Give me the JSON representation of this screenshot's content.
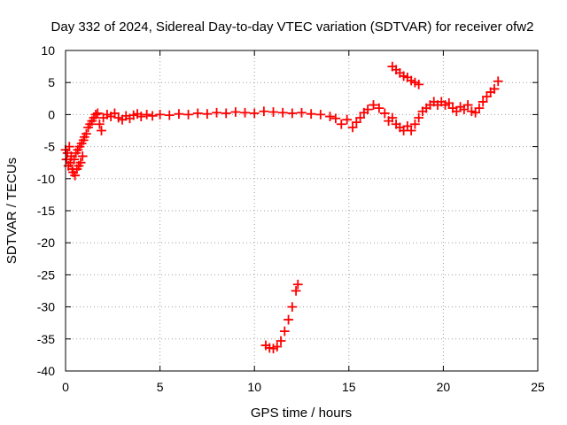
{
  "chart_data": {
    "type": "scatter",
    "title": "Day 332 of 2024, Sidereal Day-to-day VTEC variation (SDTVAR) for receiver ofw2",
    "xlabel": "GPS time / hours",
    "ylabel": "SDTVAR / TECUs",
    "xlim": [
      0,
      25
    ],
    "ylim": [
      -40,
      10
    ],
    "xticks": [
      0,
      5,
      10,
      15,
      20,
      25
    ],
    "yticks": [
      -40,
      -35,
      -30,
      -25,
      -20,
      -15,
      -10,
      -5,
      0,
      5,
      10
    ],
    "xtick_labels": [
      "0",
      "5",
      "10",
      "15",
      "20",
      "25"
    ],
    "ytick_labels": [
      "-40",
      "-35",
      "-30",
      "-25",
      "-20",
      "-15",
      "-10",
      "-5",
      "0",
      "5",
      "10"
    ],
    "grid": true,
    "marker": "+",
    "color": "#ff0000",
    "series": [
      {
        "name": "main-trace",
        "points": [
          [
            0.0,
            -5.5
          ],
          [
            0.05,
            -7.0
          ],
          [
            0.1,
            -6.0
          ],
          [
            0.15,
            -8.0
          ],
          [
            0.2,
            -5.0
          ],
          [
            0.25,
            -7.5
          ],
          [
            0.3,
            -6.5
          ],
          [
            0.35,
            -8.5
          ],
          [
            0.4,
            -9.0
          ],
          [
            0.45,
            -7.0
          ],
          [
            0.5,
            -9.5
          ],
          [
            0.55,
            -6.0
          ],
          [
            0.6,
            -8.5
          ],
          [
            0.65,
            -5.5
          ],
          [
            0.7,
            -8.0
          ],
          [
            0.75,
            -5.0
          ],
          [
            0.8,
            -7.5
          ],
          [
            0.85,
            -4.5
          ],
          [
            0.9,
            -6.5
          ],
          [
            0.95,
            -4.0
          ],
          [
            1.0,
            -3.5
          ],
          [
            1.1,
            -3.0
          ],
          [
            1.2,
            -2.0
          ],
          [
            1.3,
            -1.5
          ],
          [
            1.4,
            -1.0
          ],
          [
            1.5,
            -0.5
          ],
          [
            1.6,
            0.0
          ],
          [
            1.7,
            0.2
          ],
          [
            1.8,
            -1.5
          ],
          [
            1.9,
            -2.5
          ],
          [
            2.0,
            -0.5
          ],
          [
            2.2,
            0.0
          ],
          [
            2.4,
            -0.3
          ],
          [
            2.6,
            0.2
          ],
          [
            2.8,
            -0.5
          ],
          [
            3.0,
            -0.8
          ],
          [
            3.2,
            -0.2
          ],
          [
            3.4,
            -0.6
          ],
          [
            3.6,
            -0.1
          ],
          [
            3.8,
            0.1
          ],
          [
            4.0,
            -0.3
          ],
          [
            4.3,
            0.0
          ],
          [
            4.6,
            -0.2
          ],
          [
            5.0,
            0.0
          ],
          [
            5.5,
            -0.1
          ],
          [
            6.0,
            0.1
          ],
          [
            6.5,
            0.0
          ],
          [
            7.0,
            0.2
          ],
          [
            7.5,
            0.1
          ],
          [
            8.0,
            0.3
          ],
          [
            8.5,
            0.2
          ],
          [
            9.0,
            0.4
          ],
          [
            9.5,
            0.3
          ],
          [
            10.0,
            0.2
          ],
          [
            10.5,
            0.5
          ],
          [
            11.0,
            0.4
          ],
          [
            11.5,
            0.3
          ],
          [
            12.0,
            0.2
          ],
          [
            12.5,
            0.3
          ],
          [
            13.0,
            0.1
          ],
          [
            13.5,
            0.0
          ],
          [
            14.0,
            -0.3
          ],
          [
            14.3,
            -0.6
          ],
          [
            14.6,
            -1.5
          ],
          [
            14.9,
            -0.8
          ],
          [
            15.2,
            -2.0
          ],
          [
            15.4,
            -1.2
          ],
          [
            15.6,
            -0.5
          ],
          [
            15.8,
            0.3
          ],
          [
            16.0,
            0.8
          ],
          [
            16.3,
            1.5
          ],
          [
            16.6,
            1.0
          ],
          [
            16.9,
            0.2
          ],
          [
            17.1,
            -1.0
          ],
          [
            17.3,
            -0.5
          ],
          [
            17.5,
            -1.5
          ],
          [
            17.7,
            -2.0
          ],
          [
            17.9,
            -2.5
          ],
          [
            18.1,
            -1.8
          ],
          [
            18.3,
            -2.5
          ],
          [
            18.5,
            -1.5
          ],
          [
            18.7,
            -0.5
          ],
          [
            18.9,
            0.5
          ],
          [
            19.1,
            1.0
          ],
          [
            19.3,
            1.5
          ],
          [
            19.5,
            2.0
          ],
          [
            19.7,
            1.5
          ],
          [
            19.9,
            2.0
          ],
          [
            20.1,
            1.5
          ],
          [
            20.3,
            1.8
          ],
          [
            20.5,
            1.0
          ],
          [
            20.7,
            0.5
          ],
          [
            20.9,
            1.2
          ],
          [
            21.1,
            0.8
          ],
          [
            21.3,
            1.5
          ],
          [
            21.5,
            0.5
          ],
          [
            21.7,
            0.3
          ],
          [
            21.9,
            1.0
          ],
          [
            22.1,
            2.0
          ],
          [
            22.3,
            2.8
          ],
          [
            22.5,
            3.5
          ],
          [
            22.7,
            4.0
          ],
          [
            22.9,
            5.2
          ]
        ]
      },
      {
        "name": "upper-segment",
        "points": [
          [
            17.3,
            7.5
          ],
          [
            17.5,
            7.0
          ],
          [
            17.7,
            6.5
          ],
          [
            17.9,
            6.0
          ],
          [
            18.1,
            5.8
          ],
          [
            18.3,
            5.3
          ],
          [
            18.5,
            5.0
          ],
          [
            18.7,
            4.7
          ]
        ]
      },
      {
        "name": "low-arc",
        "points": [
          [
            10.6,
            -36.0
          ],
          [
            10.8,
            -36.4
          ],
          [
            11.0,
            -36.5
          ],
          [
            11.2,
            -36.2
          ],
          [
            11.4,
            -35.3
          ],
          [
            11.6,
            -33.8
          ],
          [
            11.8,
            -32.0
          ],
          [
            12.0,
            -30.0
          ],
          [
            12.2,
            -27.5
          ],
          [
            12.3,
            -26.5
          ]
        ]
      }
    ]
  }
}
